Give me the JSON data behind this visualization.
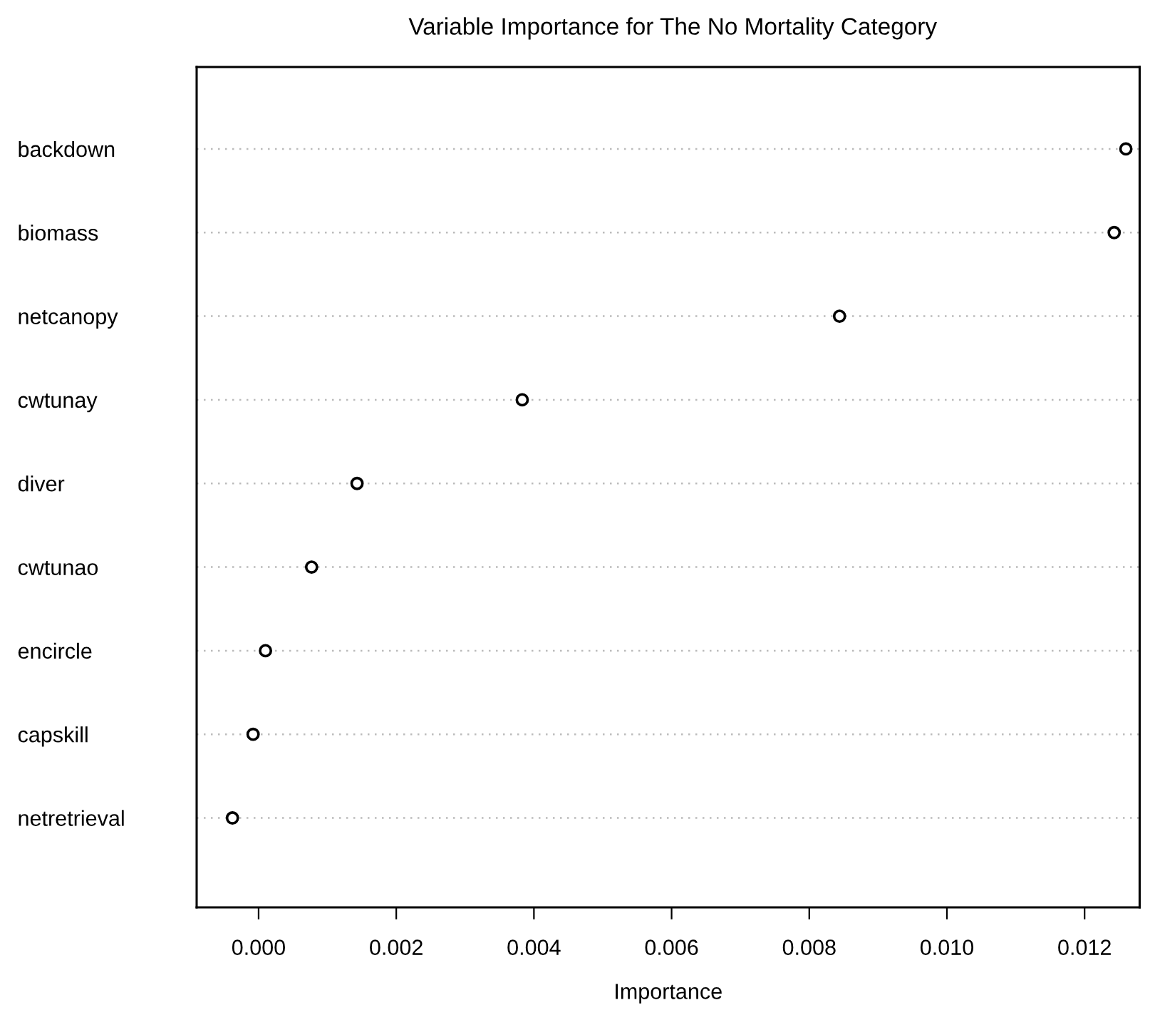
{
  "chart_data": {
    "type": "scatter",
    "title": "Variable Importance for The No Mortality Category",
    "xlabel": "Importance",
    "orientation": "horizontal",
    "categories": [
      "backdown",
      "biomass",
      "netcanopy",
      "cwtunay",
      "diver",
      "cwtunao",
      "encircle",
      "capskill",
      "netretrieval"
    ],
    "values": [
      0.0126,
      0.01243,
      0.00844,
      0.00383,
      0.00143,
      0.00077,
      0.0001,
      -8e-05,
      -0.00038
    ],
    "color": "#000000",
    "marker": "circle",
    "xlim": [
      -0.0009,
      0.0128
    ],
    "xticks": [
      {
        "value": 0,
        "label": "0.000"
      },
      {
        "value": 0.002,
        "label": "0.002"
      },
      {
        "value": 0.004,
        "label": "0.004"
      },
      {
        "value": 0.006,
        "label": "0.006"
      },
      {
        "value": 0.008,
        "label": "0.008"
      },
      {
        "value": 0.01,
        "label": "0.010"
      },
      {
        "value": 0.012,
        "label": "0.012"
      }
    ],
    "grid": "y"
  }
}
